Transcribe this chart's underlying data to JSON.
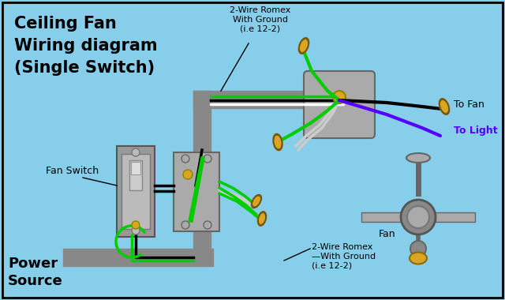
{
  "title": "Ceiling Fan\nWiring diagram\n(Single Switch)",
  "bg_color": "#87CEEB",
  "border_color": "#000000",
  "annotations": {
    "top_romex": "2-Wire Romex\nWith Ground\n(i.e 12-2)",
    "bottom_romex": "2-Wire Romex\n—With Ground\n(i.e 12-2)",
    "fan_switch": "Fan Switch",
    "power_source": "Power\nSource",
    "fan_label": "Fan",
    "to_fan": "To Fan",
    "to_light": "To Light"
  },
  "gray_color": "#909090",
  "green_color": "#00CC00",
  "black_color": "#000000",
  "blue_color": "#5500FF",
  "white_color": "#FFFFFF",
  "yellow_color": "#DAA520",
  "light_gray": "#AAAAAA",
  "dark_gray": "#666666",
  "conduit_color": "#888888"
}
